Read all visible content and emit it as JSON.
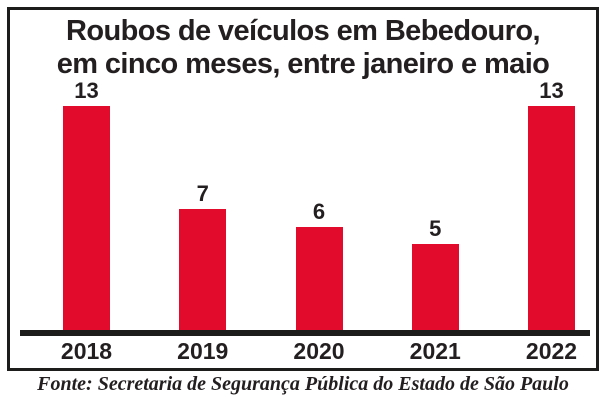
{
  "chart_data": {
    "type": "bar",
    "title": "Roubos de veículos em Bebedouro, em cinco meses, entre janeiro e maio",
    "title_lines": [
      "Roubos de veículos em Bebedouro,",
      "em cinco meses, entre janeiro e maio"
    ],
    "categories": [
      "2018",
      "2019",
      "2020",
      "2021",
      "2022"
    ],
    "values": [
      13,
      7,
      6,
      5,
      13
    ],
    "xlabel": "",
    "ylabel": "",
    "ylim": [
      0,
      13
    ],
    "grid": false,
    "legend": false,
    "value_labels_shown": true,
    "bar_color": "#e30b2c"
  },
  "source": "Fonte: Secretaria de Segurança Pública do Estado de São Paulo",
  "colors": {
    "bar": "#e30b2c",
    "text": "#231f20",
    "frame": "#1d1d1b",
    "background": "#ffffff"
  }
}
